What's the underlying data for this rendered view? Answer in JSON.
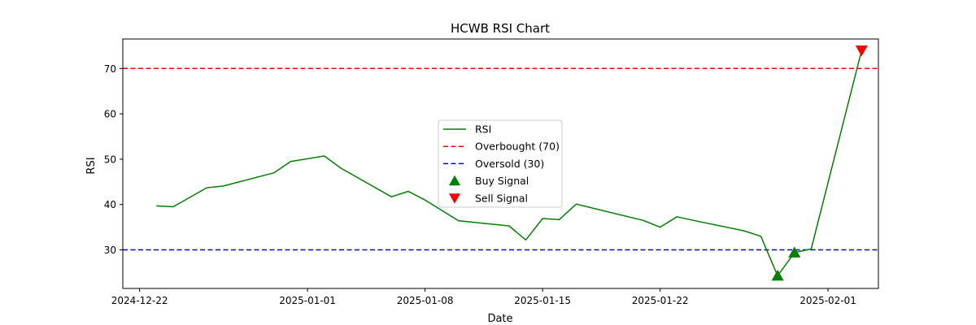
{
  "chart_data": {
    "type": "line",
    "title": "HCWB RSI Chart",
    "xlabel": "Date",
    "ylabel": "RSI",
    "x_axis": {
      "type": "date",
      "range": [
        "2024-12-21",
        "2025-02-04"
      ],
      "ticks": [
        "2024-12-22",
        "2025-01-01",
        "2025-01-08",
        "2025-01-15",
        "2025-01-22",
        "2025-02-01"
      ]
    },
    "y_axis": {
      "range": [
        21.5,
        76.5
      ],
      "ticks": [
        30,
        40,
        50,
        60,
        70
      ]
    },
    "grid": false,
    "legend": {
      "placement": "center"
    },
    "series": [
      {
        "name": "RSI",
        "kind": "line",
        "color": "#008000",
        "points": [
          [
            "2024-12-23",
            39.7
          ],
          [
            "2024-12-24",
            39.5
          ],
          [
            "2024-12-26",
            43.7
          ],
          [
            "2024-12-27",
            44.1
          ],
          [
            "2024-12-30",
            47.0
          ],
          [
            "2024-12-31",
            49.5
          ],
          [
            "2025-01-02",
            50.7
          ],
          [
            "2025-01-03",
            48.0
          ],
          [
            "2025-01-06",
            41.7
          ],
          [
            "2025-01-07",
            42.9
          ],
          [
            "2025-01-08",
            41.0
          ],
          [
            "2025-01-10",
            36.4
          ],
          [
            "2025-01-13",
            35.3
          ],
          [
            "2025-01-14",
            32.2
          ],
          [
            "2025-01-15",
            36.9
          ],
          [
            "2025-01-16",
            36.7
          ],
          [
            "2025-01-17",
            40.1
          ],
          [
            "2025-01-21",
            36.5
          ],
          [
            "2025-01-22",
            35.0
          ],
          [
            "2025-01-23",
            37.3
          ],
          [
            "2025-01-24",
            36.5
          ],
          [
            "2025-01-27",
            34.2
          ],
          [
            "2025-01-28",
            33.0
          ],
          [
            "2025-01-29",
            24.3
          ],
          [
            "2025-01-30",
            29.4
          ],
          [
            "2025-01-31",
            30.2
          ],
          [
            "2025-02-03",
            74.0
          ]
        ]
      },
      {
        "name": "Overbought (70)",
        "kind": "hline",
        "y": 70,
        "color": "#ff0000",
        "dash": true
      },
      {
        "name": "Oversold (30)",
        "kind": "hline",
        "y": 30,
        "color": "#0000cc",
        "dash": true
      },
      {
        "name": "Buy Signal",
        "kind": "marker",
        "marker": "triangle-up",
        "color": "#008000",
        "points": [
          [
            "2025-01-29",
            24.3
          ],
          [
            "2025-01-30",
            29.4
          ]
        ]
      },
      {
        "name": "Sell Signal",
        "kind": "marker",
        "marker": "triangle-down",
        "color": "#ff0000",
        "points": [
          [
            "2025-02-03",
            74.0
          ]
        ]
      }
    ]
  }
}
